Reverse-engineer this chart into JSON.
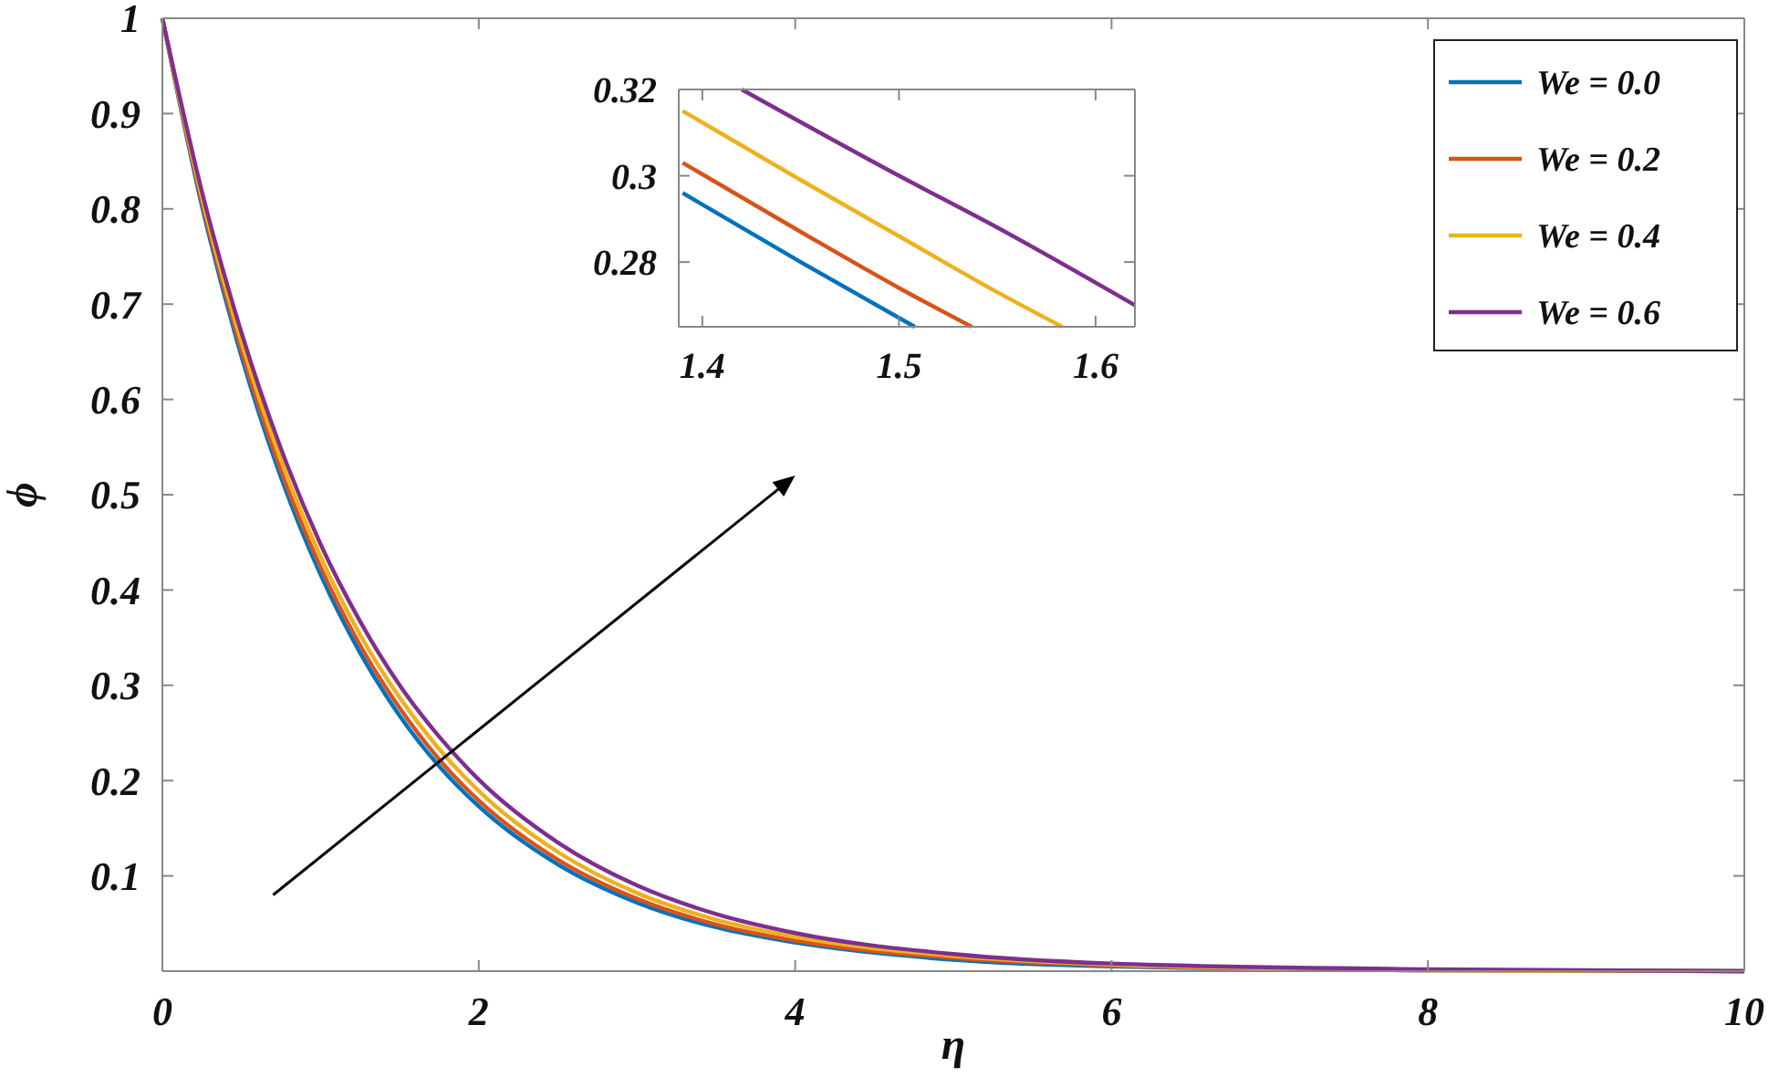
{
  "chart_data": [
    {
      "type": "line",
      "xlabel": "η",
      "ylabel": "ϕ",
      "xlim": [
        0,
        10
      ],
      "ylim": [
        0,
        1
      ],
      "xticks": [
        0,
        2,
        4,
        6,
        8,
        10
      ],
      "yticks": [
        0.1,
        0.2,
        0.3,
        0.4,
        0.5,
        0.6,
        0.7,
        0.8,
        0.9,
        1
      ],
      "legend": "top right",
      "grid": false,
      "line_style": "solid",
      "x": [
        0,
        0.25,
        0.5,
        0.75,
        1,
        1.25,
        1.5,
        1.75,
        2,
        2.5,
        3,
        3.5,
        4,
        5,
        6,
        8,
        10
      ],
      "series": [
        {
          "name": "We = 0.0",
          "color": "#0072bd",
          "values": [
            1,
            0.803,
            0.645,
            0.518,
            0.416,
            0.334,
            0.268,
            0.215,
            0.173,
            0.112,
            0.072,
            0.046,
            0.03,
            0.012,
            0.005,
            0.001,
            0.0
          ]
        },
        {
          "name": "We = 0.2",
          "color": "#d95319",
          "values": [
            1,
            0.807,
            0.651,
            0.525,
            0.424,
            0.342,
            0.276,
            0.222,
            0.179,
            0.117,
            0.076,
            0.049,
            0.032,
            0.014,
            0.006,
            0.001,
            0.0
          ]
        },
        {
          "name": "We = 0.4",
          "color": "#edb120",
          "values": [
            1,
            0.812,
            0.66,
            0.536,
            0.435,
            0.353,
            0.287,
            0.233,
            0.189,
            0.125,
            0.082,
            0.054,
            0.036,
            0.016,
            0.007,
            0.001,
            0.0
          ]
        },
        {
          "name": "We = 0.6",
          "color": "#7e2f8e",
          "values": [
            1,
            0.818,
            0.67,
            0.548,
            0.448,
            0.367,
            0.3,
            0.246,
            0.201,
            0.135,
            0.09,
            0.06,
            0.04,
            0.018,
            0.008,
            0.002,
            0.0
          ]
        }
      ]
    },
    {
      "type": "line",
      "xlim": [
        1.388,
        1.62
      ],
      "ylim": [
        0.265,
        0.32
      ],
      "xticks": [
        1.4,
        1.5,
        1.6
      ],
      "yticks": [
        0.28,
        0.3,
        0.32
      ],
      "grid": false,
      "line_style": "solid",
      "series": [
        {
          "color": "#0072bd",
          "x": [
            1.39,
            1.45,
            1.508
          ],
          "values": [
            0.296,
            0.28,
            0.265
          ]
        },
        {
          "color": "#d95319",
          "x": [
            1.39,
            1.45,
            1.5,
            1.537
          ],
          "values": [
            0.303,
            0.287,
            0.274,
            0.265
          ]
        },
        {
          "color": "#edb120",
          "x": [
            1.39,
            1.45,
            1.5,
            1.55,
            1.583
          ],
          "values": [
            0.315,
            0.299,
            0.286,
            0.273,
            0.265
          ]
        },
        {
          "color": "#7e2f8e",
          "x": [
            1.42,
            1.5,
            1.55,
            1.62
          ],
          "values": [
            0.32,
            0.3,
            0.288,
            0.27
          ]
        }
      ]
    }
  ]
}
